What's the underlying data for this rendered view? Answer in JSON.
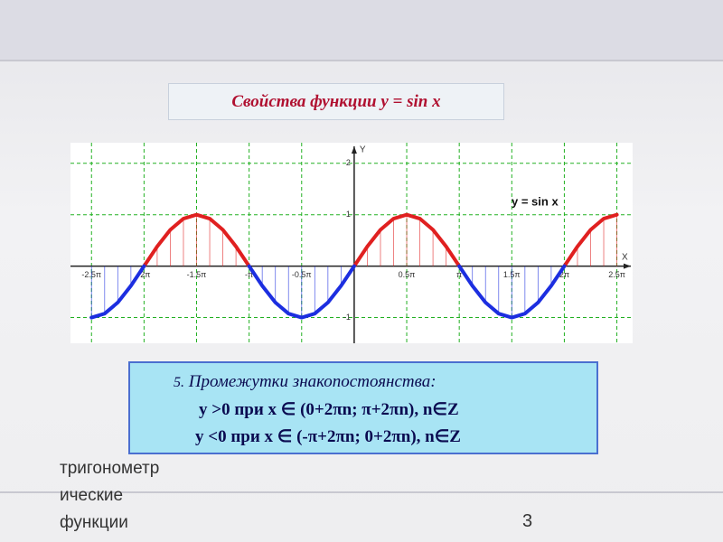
{
  "title": "Свойства функции y = sin x",
  "chart_data": {
    "type": "line",
    "annotation": "y = sin x",
    "x_axis_label": "X",
    "y_axis_label": "Y",
    "x": [
      -2.5,
      -2.375,
      -2.25,
      -2.125,
      -2,
      -1.875,
      -1.75,
      -1.625,
      -1.5,
      -1.375,
      -1.25,
      -1.125,
      -1,
      -0.875,
      -0.75,
      -0.625,
      -0.5,
      -0.375,
      -0.25,
      -0.125,
      0,
      0.125,
      0.25,
      0.375,
      0.5,
      0.625,
      0.75,
      0.875,
      1,
      1.125,
      1.25,
      1.375,
      1.5,
      1.625,
      1.75,
      1.875,
      2,
      2.125,
      2.25,
      2.375,
      2.5
    ],
    "series": [
      {
        "color": "#e02020",
        "values": [
          null,
          null,
          null,
          null,
          0,
          0.3827,
          0.7071,
          0.9239,
          1,
          0.9239,
          0.7071,
          0.3827,
          0,
          null,
          null,
          null,
          null,
          null,
          null,
          null,
          0,
          0.3827,
          0.7071,
          0.9239,
          1,
          0.9239,
          0.7071,
          0.3827,
          0,
          null,
          null,
          null,
          null,
          null,
          null,
          null,
          0,
          0.3827,
          0.7071,
          0.9239,
          1
        ]
      },
      {
        "color": "#1c2ee0",
        "values": [
          -1,
          -0.9239,
          -0.7071,
          -0.3827,
          0,
          null,
          null,
          null,
          null,
          null,
          null,
          null,
          0,
          -0.3827,
          -0.7071,
          -0.9239,
          -1,
          -0.9239,
          -0.7071,
          -0.3827,
          0,
          null,
          null,
          null,
          null,
          null,
          null,
          null,
          0,
          -0.3827,
          -0.7071,
          -0.9239,
          -1,
          -0.9239,
          -0.7071,
          -0.3827,
          0,
          null,
          null,
          null,
          null
        ]
      }
    ],
    "xlim": [
      -2.7,
      2.65
    ],
    "ylim": [
      -1.5,
      2.4
    ],
    "xticks": [
      {
        "value": -2.5,
        "label": "-2.5π"
      },
      {
        "value": -2,
        "label": "-2π"
      },
      {
        "value": -1.5,
        "label": "-1.5π"
      },
      {
        "value": -1,
        "label": "-π"
      },
      {
        "value": -0.5,
        "label": "-0.5π"
      },
      {
        "value": 0.5,
        "label": "0.5π"
      },
      {
        "value": 1,
        "label": "π"
      },
      {
        "value": 1.5,
        "label": "1.5π"
      },
      {
        "value": 2,
        "label": "2π"
      },
      {
        "value": 2.5,
        "label": "2.5π"
      }
    ],
    "yticks": [
      -1,
      1,
      2
    ],
    "grid": true,
    "grid_color": "#22b022"
  },
  "info_box": {
    "heading_number": "5.",
    "heading": "Промежутки знакопостоянства:",
    "lines": [
      "y >0 при  x ∈ (0+2πn; π+2πn), n∈Z",
      "y <0 при  x ∈ (-π+2πn; 0+2πn), n∈Z"
    ]
  },
  "footer": {
    "lines": [
      "тригонометр",
      "ические",
      "функции"
    ],
    "page_number": "3"
  }
}
